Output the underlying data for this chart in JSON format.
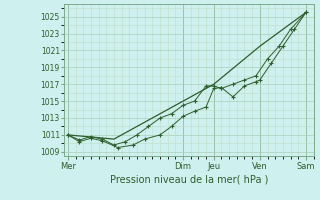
{
  "title": "",
  "xlabel": "Pression niveau de la mer( hPa )",
  "background_color": "#cef0ee",
  "grid_color_major": "#aacfb8",
  "grid_color_minor": "#c0ddc8",
  "line_color": "#2d5e2d",
  "vline_color": "#7aaa8a",
  "ylim": [
    1008.5,
    1026.5
  ],
  "yticks": [
    1009,
    1011,
    1013,
    1015,
    1017,
    1019,
    1021,
    1023,
    1025
  ],
  "day_labels": [
    "Mer",
    "Dim",
    "Jeu",
    "Ven",
    "Sam"
  ],
  "day_positions": [
    0,
    15,
    19,
    25,
    31
  ],
  "xlim": [
    -0.5,
    32
  ],
  "series1_x": [
    0,
    1.5,
    3,
    4.5,
    6.5,
    8.5,
    10,
    12,
    13.5,
    15,
    16.5,
    18,
    19,
    20,
    21.5,
    23,
    24.5,
    25,
    26.5,
    28,
    29.5,
    31
  ],
  "series1_y": [
    1011.0,
    1010.2,
    1010.6,
    1010.3,
    1009.5,
    1009.8,
    1010.5,
    1011.0,
    1012.0,
    1013.2,
    1013.8,
    1014.3,
    1016.5,
    1016.6,
    1015.5,
    1016.8,
    1017.3,
    1017.5,
    1019.5,
    1021.5,
    1023.5,
    1025.5
  ],
  "series2_x": [
    0,
    1.5,
    3,
    4.5,
    6,
    7.5,
    9,
    10.5,
    12,
    13.5,
    15,
    16.5,
    18,
    19,
    20,
    21.5,
    23,
    24.5,
    26,
    27.5,
    29,
    31
  ],
  "series2_y": [
    1011.0,
    1010.4,
    1010.8,
    1010.5,
    1009.8,
    1010.2,
    1011.0,
    1012.0,
    1013.0,
    1013.5,
    1014.5,
    1015.0,
    1016.8,
    1016.8,
    1016.5,
    1017.0,
    1017.5,
    1018.0,
    1020.0,
    1021.5,
    1023.5,
    1025.5
  ],
  "series3_x": [
    0,
    6,
    12,
    19,
    25,
    31
  ],
  "series3_y": [
    1011.0,
    1010.5,
    1013.5,
    1017.0,
    1021.5,
    1025.5
  ]
}
